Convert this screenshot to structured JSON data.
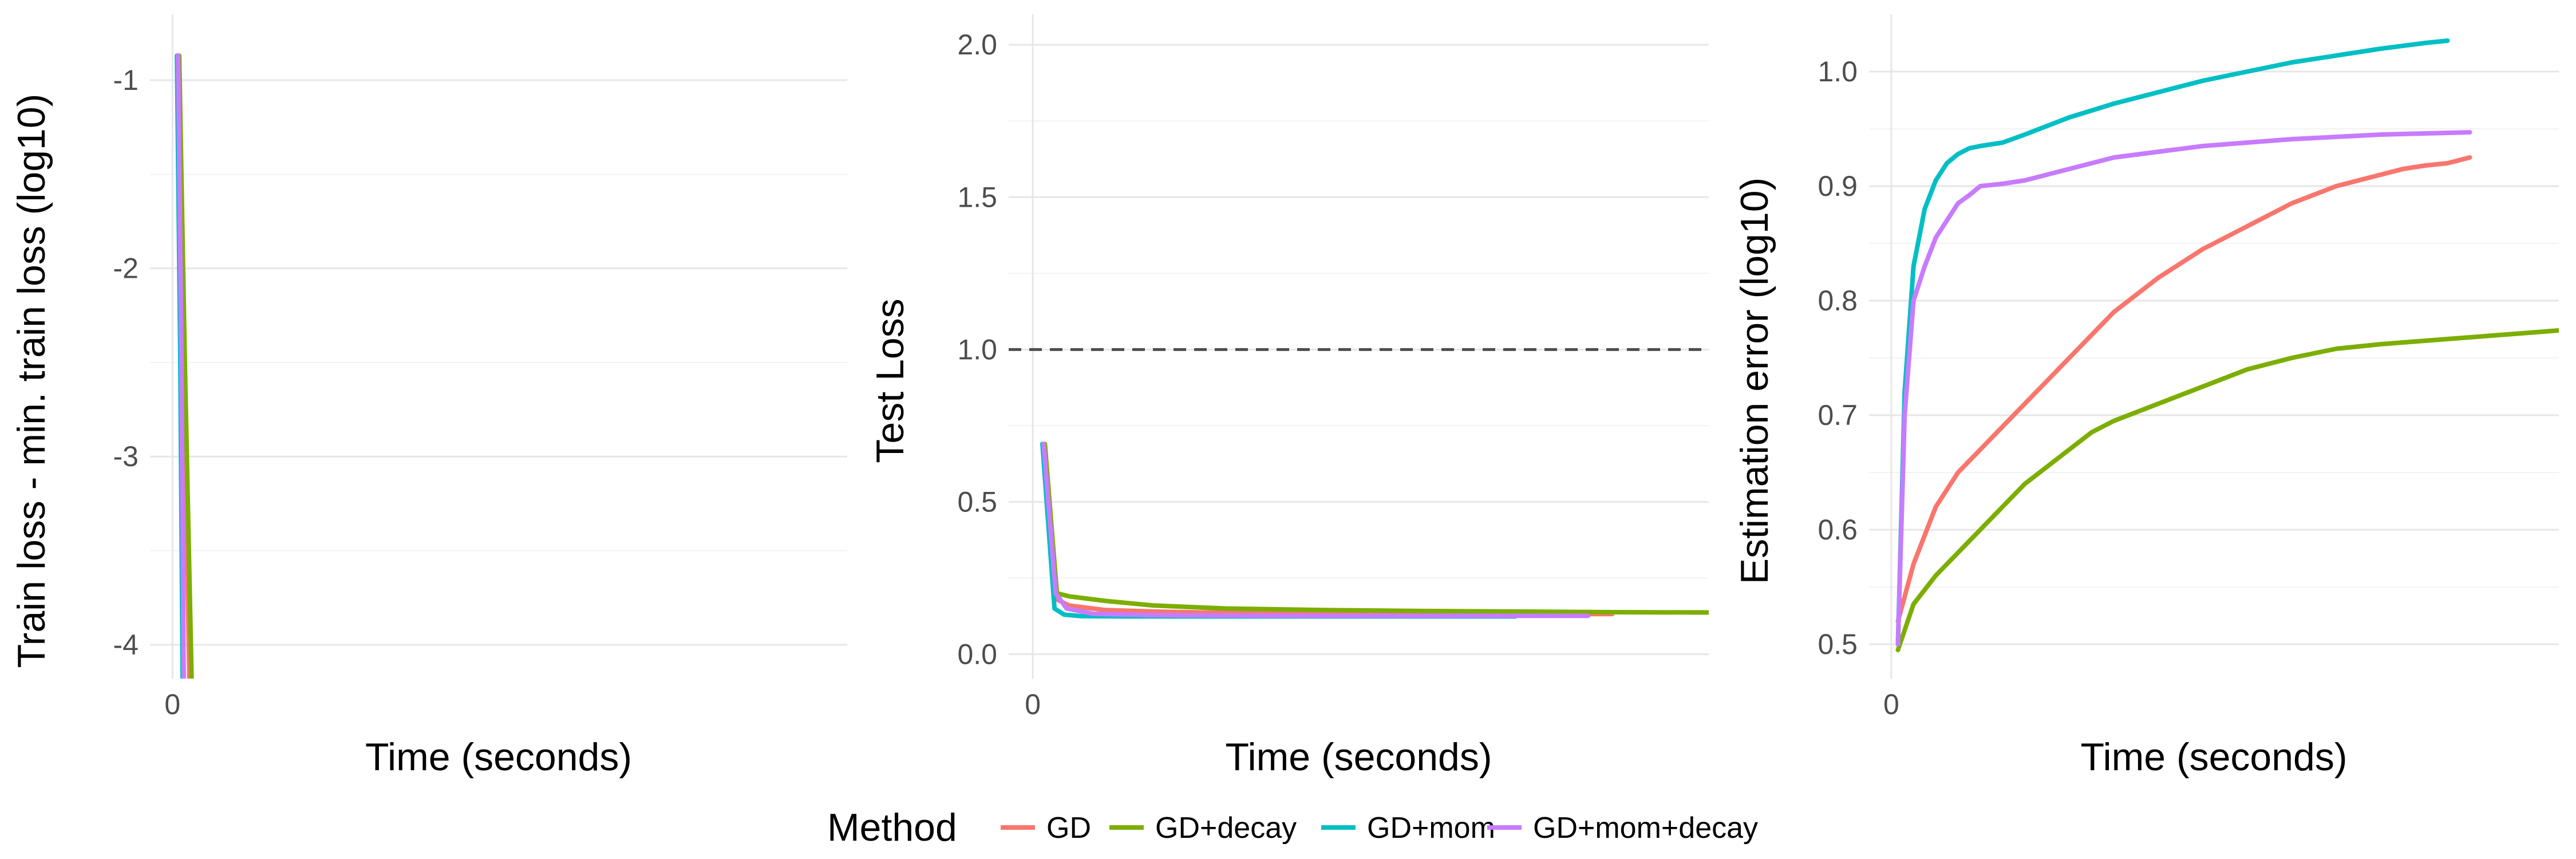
{
  "chart_data": [
    {
      "type": "line",
      "xlabel": "Time (seconds)",
      "ylabel": "Train loss - min. train loss (log10)",
      "xlim": [
        -1,
        30
      ],
      "ylim": [
        -4.18,
        -0.65
      ],
      "x_ticks": [
        0
      ],
      "y_ticks": [
        -4,
        -3,
        -2,
        -1
      ],
      "grid": true,
      "series": [
        {
          "name": "GD",
          "color": "#F8766D",
          "x": [
            0.3,
            0.5,
            0.75
          ],
          "y": [
            -0.87,
            -2.5,
            -4.18
          ]
        },
        {
          "name": "GD+decay",
          "color": "#7CAE00",
          "x": [
            0.3,
            0.55,
            0.85
          ],
          "y": [
            -0.87,
            -2.5,
            -4.18
          ]
        },
        {
          "name": "GD+mom",
          "color": "#00BFC4",
          "x": [
            0.2,
            0.35,
            0.45
          ],
          "y": [
            -0.87,
            -2.5,
            -4.18
          ]
        },
        {
          "name": "GD+mom+decay",
          "color": "#C77CFF",
          "x": [
            0.25,
            0.4,
            0.5
          ],
          "y": [
            -0.87,
            -2.5,
            -4.18
          ]
        }
      ]
    },
    {
      "type": "line",
      "xlabel": "Time (seconds)",
      "ylabel": "Test Loss",
      "xlim": [
        -1,
        28
      ],
      "ylim": [
        -0.08,
        2.1
      ],
      "x_ticks": [
        0
      ],
      "y_ticks": [
        0.0,
        0.5,
        1.0,
        1.5,
        2.0
      ],
      "y_tick_labels": [
        "0.0",
        "0.5",
        "1.0",
        "1.5",
        "2.0"
      ],
      "hline": 1.0,
      "grid": true,
      "series": [
        {
          "name": "GD",
          "color": "#F8766D",
          "x": [
            0.5,
            1.0,
            1.5,
            3,
            5,
            8,
            12,
            16,
            20,
            24
          ],
          "y": [
            0.69,
            0.18,
            0.16,
            0.145,
            0.14,
            0.136,
            0.134,
            0.133,
            0.132,
            0.132
          ]
        },
        {
          "name": "GD+decay",
          "color": "#7CAE00",
          "x": [
            0.5,
            1.0,
            1.5,
            3,
            5,
            8,
            12,
            16,
            20,
            24,
            28
          ],
          "y": [
            0.69,
            0.2,
            0.19,
            0.175,
            0.16,
            0.15,
            0.145,
            0.142,
            0.14,
            0.138,
            0.137
          ]
        },
        {
          "name": "GD+mom",
          "color": "#00BFC4",
          "x": [
            0.4,
            0.9,
            1.3,
            2,
            4,
            8,
            12,
            16,
            20
          ],
          "y": [
            0.69,
            0.15,
            0.13,
            0.125,
            0.124,
            0.124,
            0.124,
            0.124,
            0.124
          ]
        },
        {
          "name": "GD+mom+decay",
          "color": "#C77CFF",
          "x": [
            0.45,
            0.95,
            1.4,
            2.5,
            5,
            8,
            12,
            16,
            20,
            23
          ],
          "y": [
            0.69,
            0.2,
            0.15,
            0.133,
            0.128,
            0.127,
            0.126,
            0.126,
            0.126,
            0.126
          ]
        }
      ]
    },
    {
      "type": "line",
      "xlabel": "Time (seconds)",
      "ylabel": "Estimation error (log10)",
      "xlim": [
        -1,
        30
      ],
      "ylim": [
        0.47,
        1.05
      ],
      "x_ticks": [
        0
      ],
      "y_ticks": [
        0.5,
        0.6,
        0.7,
        0.8,
        0.9,
        1.0
      ],
      "y_tick_labels": [
        "0.5",
        "0.6",
        "0.7",
        "0.8",
        "0.9",
        "1.0"
      ],
      "grid": true,
      "series": [
        {
          "name": "GD",
          "color": "#F8766D",
          "x": [
            0.3,
            1,
            2,
            3,
            4,
            5,
            6,
            7,
            8,
            9,
            10,
            12,
            14,
            16,
            18,
            20,
            22,
            23,
            24,
            25,
            26
          ],
          "y": [
            0.52,
            0.57,
            0.62,
            0.65,
            0.67,
            0.69,
            0.71,
            0.73,
            0.75,
            0.77,
            0.79,
            0.82,
            0.845,
            0.865,
            0.885,
            0.9,
            0.91,
            0.915,
            0.918,
            0.92,
            0.925
          ]
        },
        {
          "name": "GD+decay",
          "color": "#7CAE00",
          "x": [
            0.3,
            1,
            2,
            3,
            4,
            5,
            6,
            7,
            8,
            9,
            10,
            12,
            14,
            16,
            18,
            20,
            22,
            24,
            26,
            28,
            30
          ],
          "y": [
            0.495,
            0.535,
            0.56,
            0.58,
            0.6,
            0.62,
            0.64,
            0.655,
            0.67,
            0.685,
            0.695,
            0.71,
            0.725,
            0.74,
            0.75,
            0.758,
            0.762,
            0.765,
            0.768,
            0.771,
            0.774
          ]
        },
        {
          "name": "GD+mom",
          "color": "#00BFC4",
          "x": [
            0.3,
            0.6,
            1,
            1.5,
            2,
            2.5,
            3,
            3.5,
            4,
            5,
            6,
            8,
            10,
            12,
            14,
            16,
            18,
            20,
            22,
            24,
            25
          ],
          "y": [
            0.5,
            0.72,
            0.83,
            0.88,
            0.905,
            0.92,
            0.928,
            0.933,
            0.935,
            0.938,
            0.945,
            0.96,
            0.972,
            0.982,
            0.992,
            1.0,
            1.008,
            1.014,
            1.02,
            1.025,
            1.027
          ]
        },
        {
          "name": "GD+mom+decay",
          "color": "#C77CFF",
          "x": [
            0.3,
            0.6,
            1,
            1.5,
            2,
            2.5,
            3,
            3.5,
            4,
            5,
            6,
            8,
            10,
            12,
            14,
            16,
            18,
            20,
            22,
            24,
            26
          ],
          "y": [
            0.5,
            0.7,
            0.8,
            0.83,
            0.855,
            0.87,
            0.885,
            0.892,
            0.9,
            0.902,
            0.905,
            0.915,
            0.925,
            0.93,
            0.935,
            0.938,
            0.941,
            0.943,
            0.945,
            0.946,
            0.947
          ]
        }
      ]
    }
  ],
  "legend": {
    "title": "Method",
    "placement": "bottom",
    "entries": [
      {
        "label": "GD",
        "color": "#F8766D"
      },
      {
        "label": "GD+decay",
        "color": "#7CAE00"
      },
      {
        "label": "GD+mom",
        "color": "#00BFC4"
      },
      {
        "label": "GD+mom+decay",
        "color": "#C77CFF"
      }
    ]
  }
}
